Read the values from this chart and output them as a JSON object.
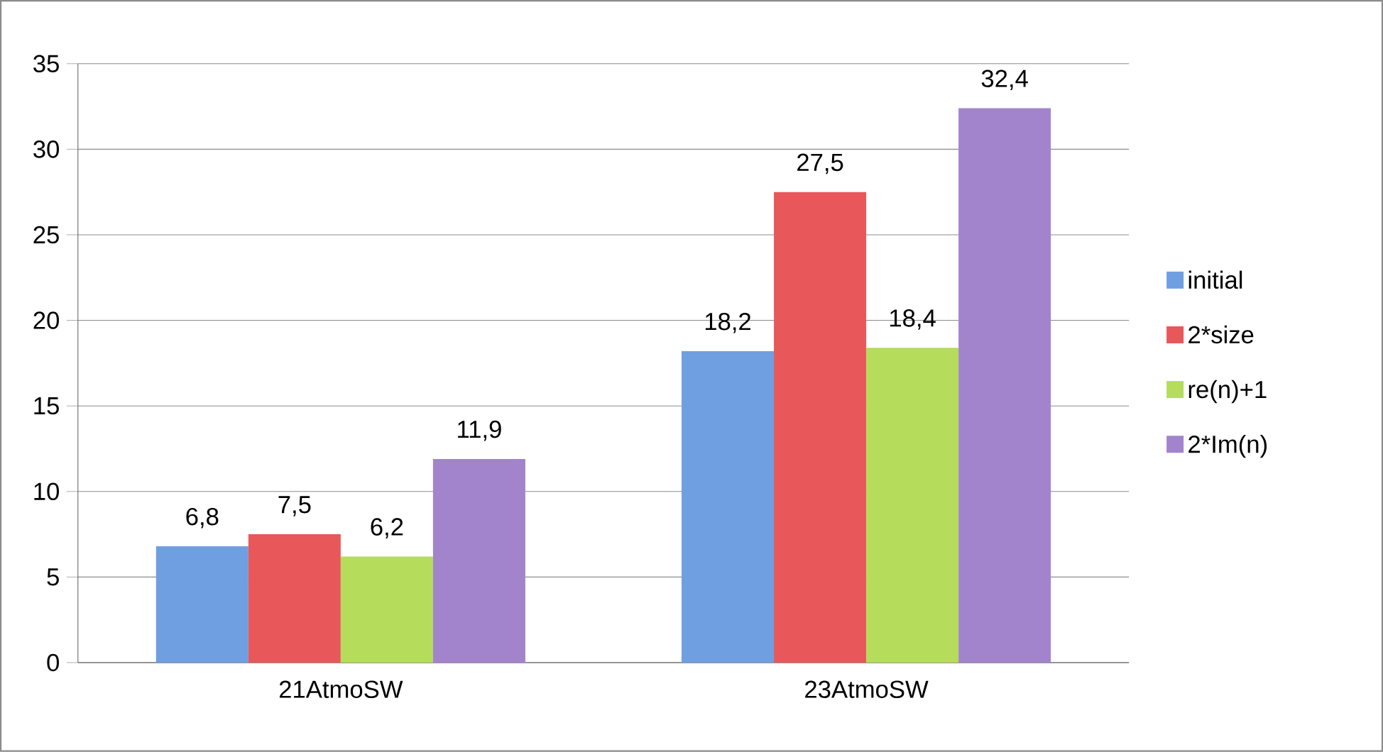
{
  "chart_data": {
    "type": "bar",
    "categories": [
      "21AtmoSW",
      "23AtmoSW"
    ],
    "series": [
      {
        "name": "initial",
        "color": "#6f9fe0",
        "values": [
          6.8,
          18.2
        ],
        "value_labels": [
          "6,8",
          "18,2"
        ]
      },
      {
        "name": "2*size",
        "color": "#e8585a",
        "values": [
          7.5,
          27.5
        ],
        "value_labels": [
          "7,5",
          "27,5"
        ]
      },
      {
        "name": "re(n)+1",
        "color": "#b5dc5a",
        "values": [
          6.2,
          18.4
        ],
        "value_labels": [
          "6,2",
          "18,4"
        ]
      },
      {
        "name": "2*Im(n)",
        "color": "#a284cc",
        "values": [
          11.9,
          32.4
        ],
        "value_labels": [
          "11,9",
          "32,4"
        ]
      }
    ],
    "ylim": [
      0,
      35
    ],
    "yticks": [
      0,
      5,
      10,
      15,
      20,
      25,
      30,
      35
    ],
    "grid": "y",
    "legend": "right"
  }
}
